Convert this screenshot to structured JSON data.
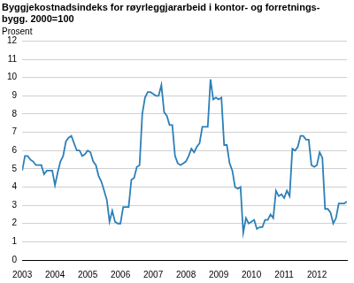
{
  "chart_data": {
    "type": "line",
    "title": [
      "Byggjekostnadsindeks for røyrleggjararbeid i kontor- og forretnings-",
      "bygg. 2000=100"
    ],
    "ylabel": "Prosent",
    "categories": [
      "2003",
      null,
      null,
      null,
      null,
      null,
      null,
      null,
      null,
      null,
      null,
      null,
      "2004",
      null,
      null,
      null,
      null,
      null,
      null,
      null,
      null,
      null,
      null,
      null,
      "2005",
      null,
      null,
      null,
      null,
      null,
      null,
      null,
      null,
      null,
      null,
      null,
      "2006",
      null,
      null,
      null,
      null,
      null,
      null,
      null,
      null,
      null,
      null,
      null,
      "2007",
      null,
      null,
      null,
      null,
      null,
      null,
      null,
      null,
      null,
      null,
      null,
      "2008",
      null,
      null,
      null,
      null,
      null,
      null,
      null,
      null,
      null,
      null,
      null,
      "2009",
      null,
      null,
      null,
      null,
      null,
      null,
      null,
      null,
      null,
      null,
      null,
      "2010",
      null,
      null,
      null,
      null,
      null,
      null,
      null,
      null,
      null,
      null,
      null,
      "2011",
      null,
      null,
      null,
      null,
      null,
      null,
      null,
      null,
      null,
      null,
      null,
      "2012",
      null,
      null,
      null,
      null,
      null,
      null,
      null,
      null,
      null,
      null,
      null
    ],
    "values": [
      4.9,
      5.7,
      5.7,
      5.5,
      5.4,
      5.2,
      5.2,
      5.2,
      4.7,
      4.9,
      4.9,
      4.9,
      4.1,
      4.8,
      5.4,
      5.7,
      6.5,
      6.7,
      6.8,
      6.4,
      6.0,
      6.0,
      5.7,
      5.8,
      6.0,
      5.9,
      5.4,
      5.2,
      4.6,
      4.3,
      3.8,
      3.3,
      2.1,
      2.7,
      2.1,
      2.0,
      2.0,
      2.9,
      2.9,
      2.9,
      4.4,
      4.5,
      5.1,
      5.2,
      8.0,
      8.9,
      9.2,
      9.2,
      9.1,
      9.0,
      9.0,
      9.6,
      8.1,
      7.9,
      7.4,
      7.4,
      5.7,
      5.3,
      5.2,
      5.3,
      5.4,
      5.7,
      6.1,
      5.9,
      6.2,
      6.4,
      7.3,
      7.3,
      7.3,
      9.9,
      8.8,
      8.9,
      8.8,
      8.9,
      6.3,
      6.3,
      5.3,
      4.9,
      4.0,
      3.9,
      4.0,
      1.5,
      2.3,
      2.0,
      2.1,
      2.2,
      1.7,
      1.8,
      1.8,
      2.2,
      2.2,
      2.5,
      2.3,
      3.8,
      3.5,
      3.6,
      3.4,
      3.8,
      3.5,
      6.1,
      6.0,
      6.2,
      6.8,
      6.8,
      6.6,
      6.6,
      5.2,
      5.1,
      5.2,
      5.9,
      5.6,
      2.8,
      2.8,
      2.6,
      2.0,
      2.3,
      3.1,
      3.1,
      3.1,
      3.2
    ],
    "color": "#2c7fb8",
    "ylim": [
      0,
      12
    ],
    "yticks": [
      0,
      1,
      2,
      3,
      4,
      5,
      6,
      7,
      8,
      9,
      10,
      11,
      12
    ],
    "grid": true
  }
}
